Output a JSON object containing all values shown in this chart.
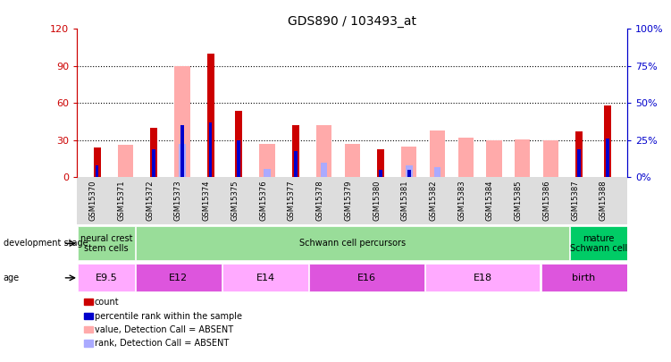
{
  "title": "GDS890 / 103493_at",
  "samples": [
    "GSM15370",
    "GSM15371",
    "GSM15372",
    "GSM15373",
    "GSM15374",
    "GSM15375",
    "GSM15376",
    "GSM15377",
    "GSM15378",
    "GSM15379",
    "GSM15380",
    "GSM15381",
    "GSM15382",
    "GSM15383",
    "GSM15384",
    "GSM15385",
    "GSM15386",
    "GSM15387",
    "GSM15388"
  ],
  "count_values": [
    24,
    0,
    40,
    0,
    100,
    54,
    0,
    42,
    0,
    0,
    23,
    0,
    0,
    0,
    0,
    0,
    0,
    37,
    58
  ],
  "percentile_values": [
    8,
    0,
    19,
    35,
    37,
    25,
    0,
    18,
    0,
    0,
    5,
    5,
    0,
    0,
    0,
    0,
    0,
    19,
    26
  ],
  "absent_value_values": [
    0,
    26,
    0,
    90,
    0,
    0,
    27,
    0,
    42,
    27,
    0,
    25,
    38,
    32,
    30,
    31,
    30,
    0,
    0
  ],
  "absent_rank_values": [
    0,
    0,
    0,
    27,
    0,
    0,
    7,
    0,
    12,
    0,
    0,
    10,
    8,
    0,
    0,
    0,
    0,
    0,
    0
  ],
  "ylim_left": [
    0,
    120
  ],
  "ylim_right": [
    0,
    100
  ],
  "yticks_left": [
    0,
    30,
    60,
    90,
    120
  ],
  "ytick_labels_left": [
    "0",
    "30",
    "60",
    "90",
    "120"
  ],
  "ytick_labels_right": [
    "0%",
    "25%",
    "50%",
    "75%",
    "100%"
  ],
  "yticks_right": [
    0,
    25,
    50,
    75,
    100
  ],
  "count_color": "#cc0000",
  "percentile_color": "#0000cc",
  "absent_value_color": "#ffaaaa",
  "absent_rank_color": "#aaaaff",
  "left_axis_color": "#cc0000",
  "right_axis_color": "#0000cc",
  "stage_groups": [
    {
      "label": "neural crest\nstem cells",
      "start": 0,
      "end": 2,
      "color": "#99dd99"
    },
    {
      "label": "Schwann cell percursors",
      "start": 2,
      "end": 17,
      "color": "#99dd99"
    },
    {
      "label": "mature\nSchwann cell",
      "start": 17,
      "end": 19,
      "color": "#00cc66"
    }
  ],
  "age_groups": [
    {
      "label": "E9.5",
      "start": 0,
      "end": 2,
      "color": "#ffaaff"
    },
    {
      "label": "E12",
      "start": 2,
      "end": 5,
      "color": "#dd55dd"
    },
    {
      "label": "E14",
      "start": 5,
      "end": 8,
      "color": "#ffaaff"
    },
    {
      "label": "E16",
      "start": 8,
      "end": 12,
      "color": "#dd55dd"
    },
    {
      "label": "E18",
      "start": 12,
      "end": 16,
      "color": "#ffaaff"
    },
    {
      "label": "birth",
      "start": 16,
      "end": 19,
      "color": "#dd55dd"
    }
  ],
  "legend_items": [
    {
      "color": "#cc0000",
      "label": "count"
    },
    {
      "color": "#0000cc",
      "label": "percentile rank within the sample"
    },
    {
      "color": "#ffaaaa",
      "label": "value, Detection Call = ABSENT"
    },
    {
      "color": "#aaaaff",
      "label": "rank, Detection Call = ABSENT"
    }
  ]
}
